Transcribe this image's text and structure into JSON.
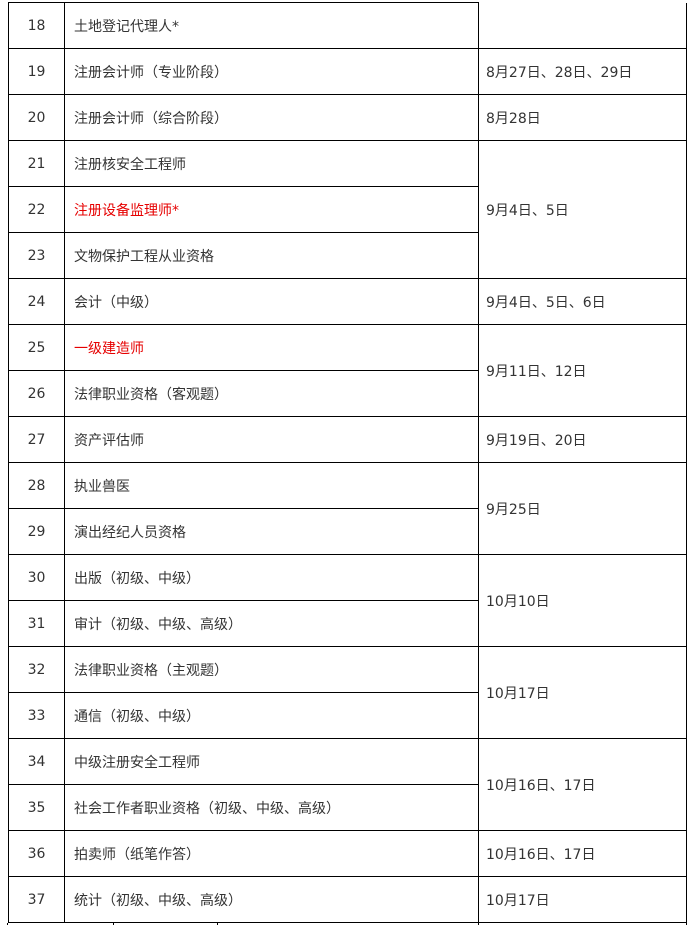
{
  "rows": [
    {
      "no": "18",
      "name": "土地登记代理人*",
      "red": false
    },
    {
      "no": "19",
      "name": "注册会计师（专业阶段）",
      "red": false
    },
    {
      "no": "20",
      "name": "注册会计师（综合阶段）",
      "red": false
    },
    {
      "no": "21",
      "name": "注册核安全工程师",
      "red": false
    },
    {
      "no": "22",
      "name": "注册设备监理师*",
      "red": true
    },
    {
      "no": "23",
      "name": "文物保护工程从业资格",
      "red": false
    },
    {
      "no": "24",
      "name": "会计（中级）",
      "red": false
    },
    {
      "no": "25",
      "name": "一级建造师",
      "red": true
    },
    {
      "no": "26",
      "name": "法律职业资格（客观题）",
      "red": false
    },
    {
      "no": "27",
      "name": "资产评估师",
      "red": false
    },
    {
      "no": "28",
      "name": "执业兽医",
      "red": false
    },
    {
      "no": "29",
      "name": "演出经纪人员资格",
      "red": false
    },
    {
      "no": "30",
      "name": "出版（初级、中级）",
      "red": false
    },
    {
      "no": "31",
      "name": "审计（初级、中级、高级）",
      "red": false
    },
    {
      "no": "32",
      "name": "法律职业资格（主观题）",
      "red": false
    },
    {
      "no": "33",
      "name": "通信（初级、中级）",
      "red": false
    },
    {
      "no": "34",
      "name": "中级注册安全工程师",
      "red": false
    },
    {
      "no": "35",
      "name": "社会工作者职业资格（初级、中级、高级）",
      "red": false
    },
    {
      "no": "36",
      "name": "拍卖师（纸笔作答）",
      "red": false
    },
    {
      "no": "37",
      "name": "统计（初级、中级、高级）",
      "red": false
    }
  ],
  "dates": [
    {
      "start": 0,
      "span": 1,
      "text": "",
      "continued": true
    },
    {
      "start": 1,
      "span": 1,
      "text": "8月27日、28日、29日"
    },
    {
      "start": 2,
      "span": 1,
      "text": "8月28日"
    },
    {
      "start": 3,
      "span": 3,
      "text": "9月4日、5日"
    },
    {
      "start": 6,
      "span": 1,
      "text": "9月4日、5日、6日"
    },
    {
      "start": 7,
      "span": 2,
      "text": "9月11日、12日"
    },
    {
      "start": 9,
      "span": 1,
      "text": "9月19日、20日"
    },
    {
      "start": 10,
      "span": 2,
      "text": "9月25日"
    },
    {
      "start": 12,
      "span": 2,
      "text": "10月10日"
    },
    {
      "start": 14,
      "span": 2,
      "text": "10月17日"
    },
    {
      "start": 16,
      "span": 2,
      "text": "10月16日、17日"
    },
    {
      "start": 18,
      "span": 1,
      "text": "10月16日、17日"
    },
    {
      "start": 19,
      "span": 1,
      "text": "10月17日"
    }
  ],
  "colors": {
    "text": "#333333",
    "highlight": "#e60000",
    "border": "#000000"
  }
}
